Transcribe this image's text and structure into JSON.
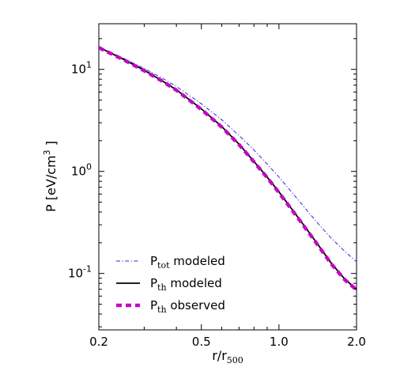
{
  "chart_data": {
    "type": "line",
    "xscale": "log",
    "yscale": "log",
    "xlim": [
      0.2,
      2.0
    ],
    "ylim": [
      0.028,
      28
    ],
    "xticks": [
      0.2,
      0.5,
      1.0,
      2.0
    ],
    "xtick_labels": [
      "0.2",
      "0.5",
      "1.0",
      "2.0"
    ],
    "yticks": [
      {
        "value": 10,
        "base": "10",
        "exp": "1"
      },
      {
        "value": 1,
        "base": "10",
        "exp": "0"
      },
      {
        "value": 0.1,
        "base": "10",
        "exp": "-1"
      }
    ],
    "xlabel": {
      "main": "r/r",
      "sub": "500"
    },
    "ylabel": {
      "main": "P [eV/cm",
      "sup": "3",
      "tail": " ]"
    },
    "legend_position": "lower-left",
    "series": [
      {
        "name": {
          "main": "P",
          "sub": "tot",
          "tail": " modeled"
        },
        "color": "#2a2ad8",
        "style": "dashdot",
        "x": [
          0.2,
          0.25,
          0.3,
          0.35,
          0.4,
          0.5,
          0.6,
          0.7,
          0.8,
          0.9,
          1.0,
          1.2,
          1.4,
          1.6,
          1.8,
          2.0
        ],
        "y": [
          16.5,
          12.8,
          10.2,
          8.3,
          6.8,
          4.6,
          3.2,
          2.25,
          1.62,
          1.18,
          0.88,
          0.51,
          0.32,
          0.22,
          0.165,
          0.13
        ]
      },
      {
        "name": {
          "main": "P",
          "sub": "th",
          "tail": " modeled"
        },
        "color": "#000000",
        "style": "solid",
        "x": [
          0.2,
          0.25,
          0.3,
          0.35,
          0.4,
          0.5,
          0.6,
          0.7,
          0.8,
          0.9,
          1.0,
          1.2,
          1.4,
          1.6,
          1.8,
          2.0
        ],
        "y": [
          16.5,
          12.5,
          9.8,
          7.8,
          6.3,
          4.1,
          2.75,
          1.85,
          1.25,
          0.88,
          0.63,
          0.34,
          0.2,
          0.125,
          0.088,
          0.07
        ]
      },
      {
        "name": {
          "main": "P",
          "sub": "th",
          "tail": " observed"
        },
        "color": "#c20ac2",
        "style": "dashed",
        "x": [
          0.2,
          0.25,
          0.3,
          0.35,
          0.4,
          0.5,
          0.6,
          0.7,
          0.8,
          0.9,
          1.0,
          1.2,
          1.4,
          1.6,
          1.8,
          2.0
        ],
        "y": [
          16.3,
          12.4,
          9.7,
          7.75,
          6.25,
          4.05,
          2.72,
          1.83,
          1.24,
          0.87,
          0.62,
          0.335,
          0.197,
          0.123,
          0.087,
          0.069
        ]
      }
    ]
  }
}
